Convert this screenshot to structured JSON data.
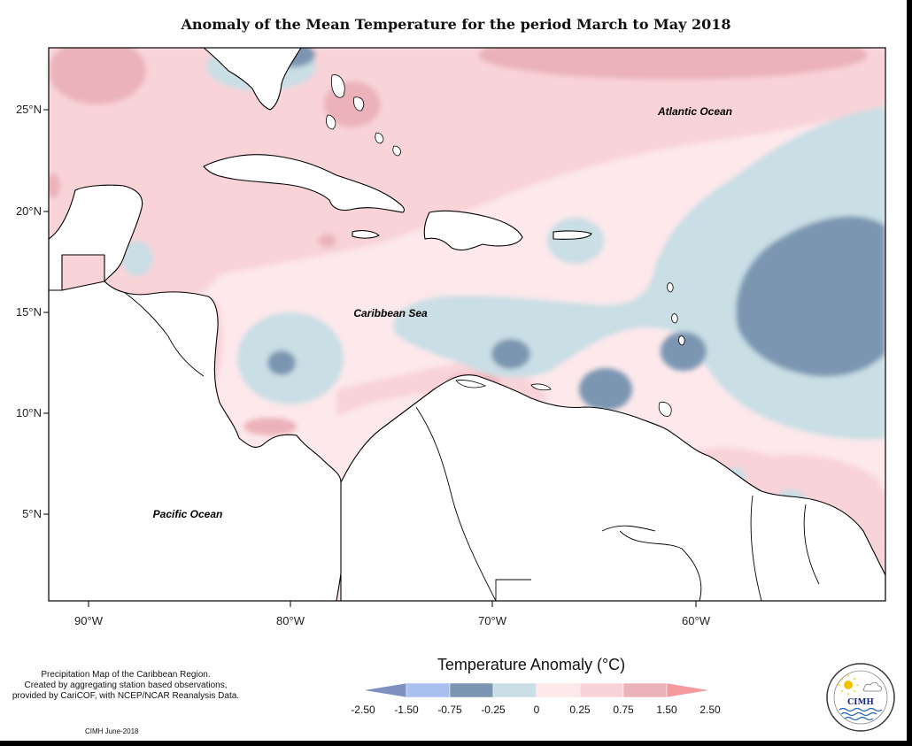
{
  "title": "Anomaly of the Mean Temperature for the period March to May 2018",
  "map": {
    "lat_ticks": [
      "25°N",
      "20°N",
      "15°N",
      "10°N",
      "5°N"
    ],
    "lon_ticks": [
      "90°W",
      "80°W",
      "70°W",
      "60°W"
    ],
    "labels": {
      "atlantic": "Atlantic Ocean",
      "caribbean": "Caribbean Sea",
      "pacific": "Pacific Ocean"
    }
  },
  "legend": {
    "title": "Temperature Anomaly (°C)",
    "bins": [
      {
        "range": [
          -2.5,
          -1.5
        ],
        "color": "#7f8fbf"
      },
      {
        "range": [
          -1.5,
          -0.75
        ],
        "color": "#a9bfef"
      },
      {
        "range": [
          -0.75,
          -0.25
        ],
        "color": "#7b96b2"
      },
      {
        "range": [
          -0.25,
          0
        ],
        "color": "#c9dee5"
      },
      {
        "range": [
          0,
          0.25
        ],
        "color": "#fde8eb"
      },
      {
        "range": [
          0.25,
          0.75
        ],
        "color": "#f8d3d8"
      },
      {
        "range": [
          0.75,
          1.5
        ],
        "color": "#ebb2b9"
      },
      {
        "range": [
          1.5,
          2.5
        ],
        "color": "#f49a9d"
      }
    ],
    "tick_labels": [
      "-2.50",
      "-1.50",
      "-0.75",
      "-0.25",
      "0",
      "0.25",
      "0.75",
      "1.50",
      "2.50"
    ]
  },
  "note": {
    "line1": "Precipitation Map of the Caribbean Region.",
    "line2": "Created by aggregating station based observations,",
    "line3": "provided by CariCOF, with NCEP/NCAR Reanalysis Data.",
    "credit": "CIMH June-2018"
  },
  "logo": {
    "text": "CIMH"
  }
}
